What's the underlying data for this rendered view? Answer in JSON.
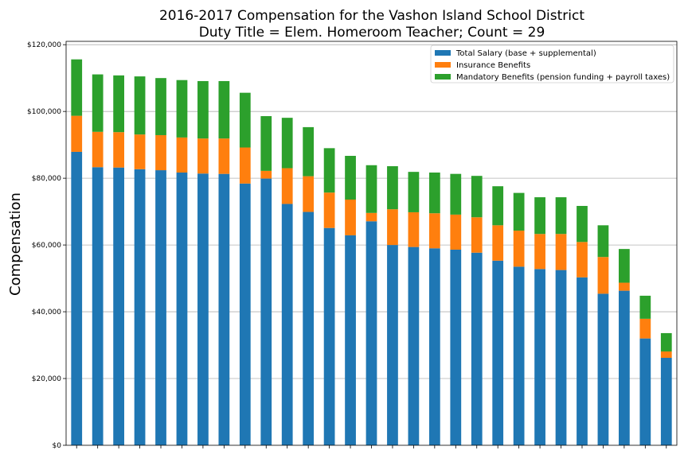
{
  "chart_data": {
    "type": "bar",
    "stacked": true,
    "title": "2016-2017 Compensation for the Vashon Island School District",
    "subtitle": "Duty Title = Elem. Homeroom Teacher; Count = 29",
    "xlabel": "",
    "ylabel": "Compensation",
    "ylim": [
      0,
      121000
    ],
    "yticks": [
      0,
      20000,
      40000,
      60000,
      80000,
      100000,
      120000
    ],
    "ytick_labels": [
      "$0",
      "$20,000",
      "$40,000",
      "$60,000",
      "$80,000",
      "$100,000",
      "$120,000"
    ],
    "grid": "horizontal",
    "legend_position": "top-right",
    "series": [
      {
        "name": "Total Salary (base + supplemental)",
        "color": "#1f77b4",
        "values": [
          87900,
          83300,
          83200,
          82700,
          82400,
          81700,
          81400,
          81300,
          78400,
          79900,
          72300,
          69900,
          65100,
          62900,
          67100,
          60000,
          59400,
          59000,
          58600,
          57700,
          55300,
          53500,
          52800,
          52500,
          50300,
          45400,
          46300,
          32000,
          26200
        ]
      },
      {
        "name": "Insurance Benefits",
        "color": "#ff7f0e",
        "values": [
          10800,
          10600,
          10600,
          10400,
          10500,
          10500,
          10500,
          10600,
          10800,
          2300,
          10700,
          10700,
          10600,
          10700,
          2500,
          10700,
          10400,
          10500,
          10500,
          10600,
          10600,
          10800,
          10500,
          10800,
          10600,
          11000,
          2400,
          5900,
          1900
        ]
      },
      {
        "name": "Mandatory Benefits (pension funding + payroll taxes)",
        "color": "#2ca02c",
        "values": [
          16900,
          17200,
          17000,
          17400,
          17100,
          17200,
          17200,
          17200,
          16400,
          16400,
          15100,
          14700,
          13300,
          13100,
          14300,
          12900,
          12100,
          12200,
          12200,
          12400,
          11700,
          11300,
          11000,
          11000,
          10800,
          9500,
          10100,
          6900,
          5500
        ]
      }
    ]
  }
}
